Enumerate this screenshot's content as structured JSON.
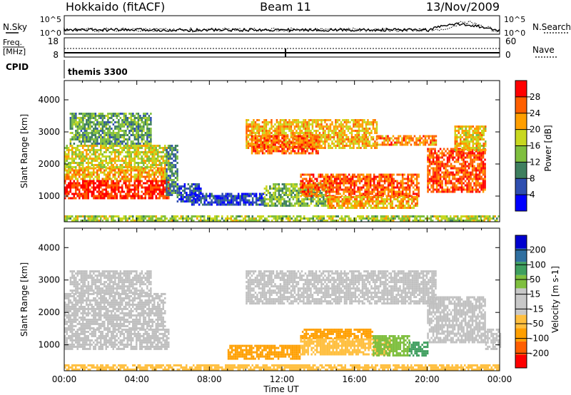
{
  "header": {
    "site": "Hokkaido (fitACF)",
    "beam": "Beam 11",
    "date": "13/Nov/2009"
  },
  "noise_panel": {
    "left_label": "N.Sky",
    "left_ticks": [
      "10^5",
      "10^0"
    ],
    "right_ticks": [
      "10^5",
      "10^0"
    ],
    "right_label": "N.Search"
  },
  "freq_panel": {
    "left_label_1": "Freq.",
    "left_label_2": "[MHz]",
    "left_ticks": [
      "18",
      "8"
    ],
    "right_ticks": [
      "60",
      "0"
    ],
    "right_label": "Nave"
  },
  "cpid": {
    "label": "CPID",
    "program": "themis 3300"
  },
  "axes": {
    "xlabel": "Time UT",
    "ylabel": "Slant Range [km]",
    "xticks": [
      "00:00",
      "04:00",
      "08:00",
      "12:00",
      "16:00",
      "20:00",
      "00:00"
    ],
    "yticks": [
      "1000",
      "2000",
      "3000",
      "4000"
    ]
  },
  "colors": {
    "power": [
      "#0000ff",
      "#2f4fb0",
      "#3f7f5f",
      "#7fbf3f",
      "#c8d820",
      "#ff9f00",
      "#ff5f00",
      "#ff0000"
    ],
    "velocity": [
      "#ff0000",
      "#ff5f00",
      "#ff9f00",
      "#ffbf3f",
      "#c8c8c8",
      "#c8c8c8",
      "#7fbf3f",
      "#3f9f5f",
      "#2f6fa0",
      "#0000cf"
    ],
    "ground": "#c0c0c0"
  },
  "chart_data": [
    {
      "type": "heatmap",
      "title": "",
      "xlabel": "Time UT",
      "ylabel": "Slant Range [km]",
      "xlim_hours": [
        0,
        24
      ],
      "ylim_km": [
        200,
        4600
      ],
      "colorbar": {
        "label": "Power [dB]",
        "ticks": [
          "4",
          "8",
          "12",
          "16",
          "20",
          "24",
          "28"
        ],
        "range": [
          0,
          32
        ]
      },
      "regions": [
        {
          "t": [
            0.0,
            5.8
          ],
          "r": [
            900,
            1500
          ],
          "value": 29
        },
        {
          "t": [
            0.0,
            5.6
          ],
          "r": [
            1500,
            1900
          ],
          "value": 22
        },
        {
          "t": [
            0.0,
            5.8
          ],
          "r": [
            1900,
            2600
          ],
          "value": 18
        },
        {
          "t": [
            0.3,
            4.8
          ],
          "r": [
            2600,
            3600
          ],
          "value": 12
        },
        {
          "t": [
            5.6,
            6.2
          ],
          "r": [
            1000,
            2600
          ],
          "value": 10
        },
        {
          "t": [
            6.2,
            7.5
          ],
          "r": [
            800,
            1400
          ],
          "value": 6
        },
        {
          "t": [
            10.0,
            17.2
          ],
          "r": [
            2500,
            3400
          ],
          "value": 21
        },
        {
          "t": [
            10.3,
            14.0
          ],
          "r": [
            2300,
            2900
          ],
          "value": 26
        },
        {
          "t": [
            17.2,
            20.5
          ],
          "r": [
            2600,
            2900
          ],
          "value": 24
        },
        {
          "t": [
            20.0,
            23.2
          ],
          "r": [
            1100,
            2500
          ],
          "value": 27
        },
        {
          "t": [
            21.5,
            23.2
          ],
          "r": [
            2400,
            3200
          ],
          "value": 20
        },
        {
          "t": [
            7.0,
            11.0
          ],
          "r": [
            700,
            1100
          ],
          "value": 5
        },
        {
          "t": [
            11.0,
            14.5
          ],
          "r": [
            700,
            1400
          ],
          "value": 14
        },
        {
          "t": [
            13.0,
            19.5
          ],
          "r": [
            1000,
            1700
          ],
          "value": 26
        },
        {
          "t": [
            14.5,
            19.5
          ],
          "r": [
            600,
            1000
          ],
          "value": 22
        },
        {
          "t": [
            0.0,
            24.0
          ],
          "r": [
            250,
            400
          ],
          "value": 16
        }
      ]
    },
    {
      "type": "heatmap",
      "title": "",
      "xlabel": "Time UT",
      "ylabel": "Slant Range [km]",
      "xlim_hours": [
        0,
        24
      ],
      "ylim_km": [
        200,
        4600
      ],
      "colorbar": {
        "label": "Velocity [m s-1]",
        "ticks": [
          "-200",
          "-100",
          "-50",
          "-15",
          "15",
          "50",
          "100",
          "200"
        ],
        "range": [
          -250,
          250
        ]
      },
      "ground_scatter_color": "#c0c0c0",
      "regions": [
        {
          "t": [
            0.0,
            5.8
          ],
          "r": [
            900,
            1500
          ],
          "value": 0,
          "ground": true
        },
        {
          "t": [
            0.0,
            5.6
          ],
          "r": [
            1500,
            2600
          ],
          "value": 0,
          "ground": true
        },
        {
          "t": [
            0.3,
            4.8
          ],
          "r": [
            2600,
            3300
          ],
          "value": 0,
          "ground": true
        },
        {
          "t": [
            10.0,
            20.5
          ],
          "r": [
            2300,
            3300
          ],
          "value": 0,
          "ground": true
        },
        {
          "t": [
            20.0,
            23.2
          ],
          "r": [
            1100,
            2500
          ],
          "value": 0,
          "ground": true
        },
        {
          "t": [
            23.2,
            24.0
          ],
          "r": [
            900,
            1500
          ],
          "value": 0,
          "ground": true
        },
        {
          "t": [
            9.0,
            13.0
          ],
          "r": [
            600,
            1000
          ],
          "value": -70
        },
        {
          "t": [
            13.0,
            17.0
          ],
          "r": [
            1200,
            1500
          ],
          "value": -90
        },
        {
          "t": [
            13.0,
            18.0
          ],
          "r": [
            700,
            1200
          ],
          "value": -40
        },
        {
          "t": [
            17.0,
            19.0
          ],
          "r": [
            700,
            1300
          ],
          "value": 25
        },
        {
          "t": [
            19.0,
            20.0
          ],
          "r": [
            700,
            1100
          ],
          "value": 60
        },
        {
          "t": [
            0.0,
            24.0
          ],
          "r": [
            250,
            400
          ],
          "value": -20
        }
      ]
    }
  ]
}
